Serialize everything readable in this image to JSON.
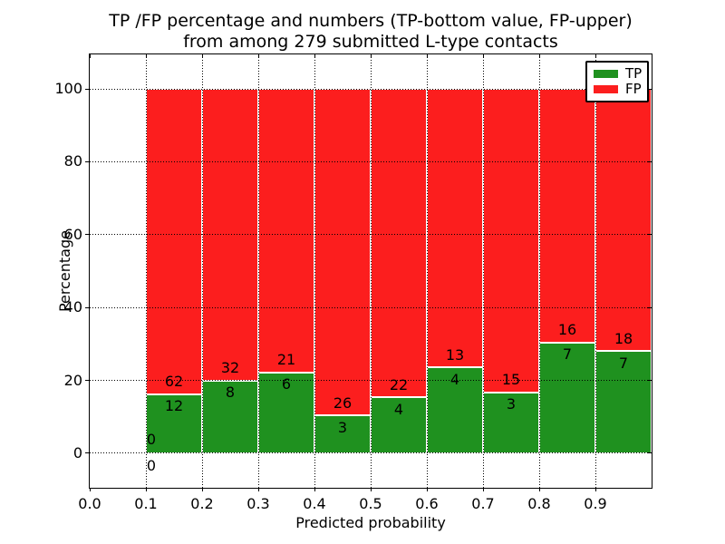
{
  "title": {
    "line1": "TP /FP percentage and numbers (TP-bottom value, FP-upper)",
    "line2": "from among 279 submitted L-type contacts"
  },
  "colors": {
    "tp": "#1f911f",
    "fp": "#fc1e1e",
    "grid": "#000000",
    "text": "#000000",
    "background": "#ffffff"
  },
  "chart_data": {
    "type": "bar",
    "stacked": true,
    "normalized": "each bin scaled to 100%",
    "title": "TP /FP percentage and numbers (TP-bottom value, FP-upper) from among 279 submitted L-type contacts",
    "xlabel": "Predicted probability",
    "ylabel": "Percentage",
    "xlim": [
      0.0,
      1.0
    ],
    "ylim": [
      -9.5,
      109.5
    ],
    "grid": true,
    "grid_style": "dotted",
    "legend_position": "upper right",
    "total_contacts": 279,
    "x_tick_labels": [
      "0.0",
      "0.1",
      "0.2",
      "0.3",
      "0.4",
      "0.5",
      "0.6",
      "0.7",
      "0.8",
      "0.9"
    ],
    "y_tick_labels": [
      "0",
      "20",
      "40",
      "60",
      "80",
      "100"
    ],
    "series": [
      {
        "name": "TP",
        "color": "#1f911f"
      },
      {
        "name": "FP",
        "color": "#fc1e1e"
      }
    ],
    "bins": [
      {
        "start": 0.0,
        "end": 0.1,
        "tp": 0,
        "fp": 0
      },
      {
        "start": 0.1,
        "end": 0.2,
        "tp": 12,
        "fp": 62
      },
      {
        "start": 0.2,
        "end": 0.3,
        "tp": 8,
        "fp": 32
      },
      {
        "start": 0.3,
        "end": 0.4,
        "tp": 6,
        "fp": 21
      },
      {
        "start": 0.4,
        "end": 0.5,
        "tp": 3,
        "fp": 26
      },
      {
        "start": 0.5,
        "end": 0.6,
        "tp": 4,
        "fp": 22
      },
      {
        "start": 0.6,
        "end": 0.7,
        "tp": 4,
        "fp": 13
      },
      {
        "start": 0.7,
        "end": 0.8,
        "tp": 3,
        "fp": 15
      },
      {
        "start": 0.8,
        "end": 0.9,
        "tp": 7,
        "fp": 16
      },
      {
        "start": 0.9,
        "end": 1.0,
        "tp": 7,
        "fp": 18
      }
    ]
  }
}
